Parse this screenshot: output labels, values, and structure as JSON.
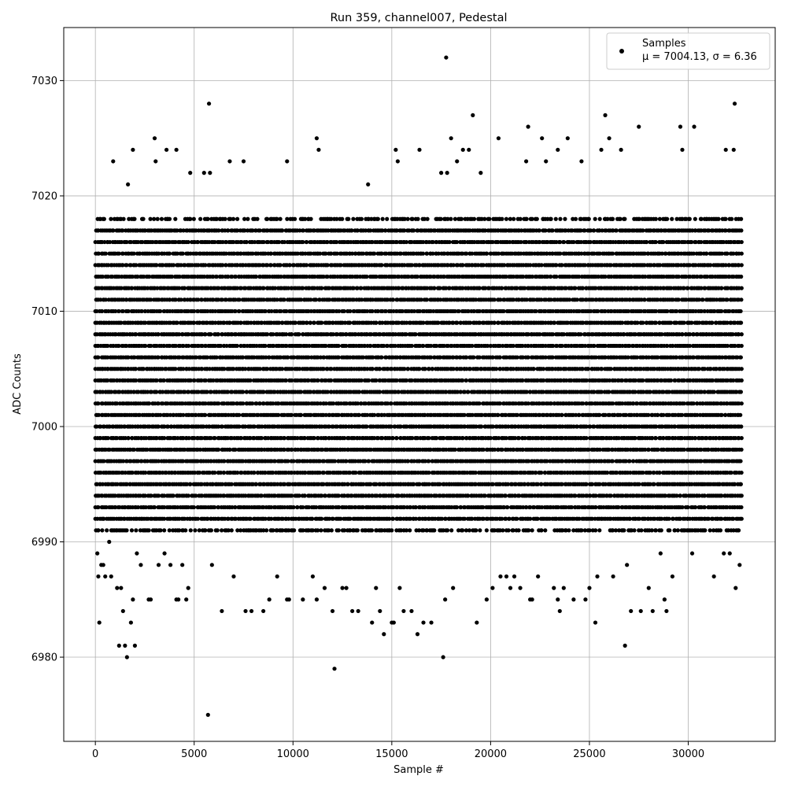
{
  "chart_data": {
    "type": "scatter",
    "title": "Run 359, channel007, Pedestal",
    "xlabel": "Sample #",
    "ylabel": "ADC Counts",
    "xlim": [
      -1600,
      34400
    ],
    "ylim": [
      6972.7,
      7034.6
    ],
    "xticks": [
      0,
      5000,
      10000,
      15000,
      20000,
      25000,
      30000
    ],
    "yticks": [
      6980,
      6990,
      7000,
      7010,
      7020,
      7030
    ],
    "grid": true,
    "legend": {
      "location": "upper right",
      "entries": [
        {
          "label": "Samples",
          "stats": "μ = 7004.13, σ = 6.36",
          "marker": "filled-circle",
          "color": "#000000"
        }
      ]
    },
    "series": [
      {
        "name": "Samples",
        "color": "#000000",
        "dense_band": {
          "x_range": [
            0,
            32700
          ],
          "y_levels": [
            6991,
            6992,
            6993,
            6994,
            6995,
            6996,
            6997,
            6998,
            6999,
            7000,
            7001,
            7002,
            7003,
            7004,
            7005,
            7006,
            7007,
            7008,
            7009,
            7010,
            7011,
            7012,
            7013,
            7014,
            7015,
            7016,
            7017,
            7018
          ]
        },
        "points": [
          [
            100,
            6989
          ],
          [
            150,
            6987
          ],
          [
            200,
            6983
          ],
          [
            300,
            6988
          ],
          [
            400,
            6988
          ],
          [
            500,
            6987
          ],
          [
            700,
            6990
          ],
          [
            800,
            6987
          ],
          [
            900,
            7023
          ],
          [
            1100,
            6986
          ],
          [
            1200,
            6981
          ],
          [
            1300,
            6986
          ],
          [
            1400,
            6984
          ],
          [
            1500,
            6981
          ],
          [
            1600,
            6980
          ],
          [
            1650,
            7021
          ],
          [
            1800,
            6983
          ],
          [
            1900,
            6985
          ],
          [
            2000,
            6981
          ],
          [
            1900,
            7024
          ],
          [
            2100,
            6989
          ],
          [
            2300,
            6988
          ],
          [
            2700,
            6985
          ],
          [
            2800,
            6985
          ],
          [
            3000,
            7025
          ],
          [
            3050,
            7023
          ],
          [
            3200,
            6988
          ],
          [
            3500,
            6989
          ],
          [
            3600,
            7024
          ],
          [
            3800,
            6988
          ],
          [
            4100,
            7024
          ],
          [
            4100,
            6985
          ],
          [
            4200,
            6985
          ],
          [
            4400,
            6988
          ],
          [
            4600,
            6985
          ],
          [
            4700,
            6986
          ],
          [
            4800,
            7022
          ],
          [
            5500,
            7022
          ],
          [
            5700,
            6975
          ],
          [
            5750,
            7028
          ],
          [
            5800,
            7022
          ],
          [
            5900,
            6988
          ],
          [
            6400,
            6984
          ],
          [
            6800,
            7023
          ],
          [
            7000,
            6987
          ],
          [
            7500,
            7023
          ],
          [
            7600,
            6984
          ],
          [
            7900,
            6984
          ],
          [
            8500,
            6984
          ],
          [
            8800,
            6985
          ],
          [
            9200,
            6987
          ],
          [
            9700,
            6985
          ],
          [
            9800,
            6985
          ],
          [
            9700,
            7023
          ],
          [
            10500,
            6985
          ],
          [
            11000,
            6987
          ],
          [
            11200,
            6985
          ],
          [
            11200,
            7025
          ],
          [
            11300,
            7024
          ],
          [
            11600,
            6986
          ],
          [
            12000,
            6984
          ],
          [
            12100,
            6979
          ],
          [
            12500,
            6986
          ],
          [
            12700,
            6986
          ],
          [
            13000,
            6984
          ],
          [
            13300,
            6984
          ],
          [
            13800,
            7021
          ],
          [
            14000,
            6983
          ],
          [
            14200,
            6986
          ],
          [
            14400,
            6984
          ],
          [
            14600,
            6982
          ],
          [
            15000,
            6983
          ],
          [
            15100,
            6983
          ],
          [
            15200,
            7024
          ],
          [
            15300,
            7023
          ],
          [
            15400,
            6986
          ],
          [
            15600,
            6984
          ],
          [
            16000,
            6984
          ],
          [
            16300,
            6982
          ],
          [
            16400,
            7024
          ],
          [
            16600,
            6983
          ],
          [
            17000,
            6983
          ],
          [
            17500,
            7022
          ],
          [
            17600,
            6980
          ],
          [
            17700,
            6985
          ],
          [
            17750,
            7032
          ],
          [
            17800,
            7022
          ],
          [
            18000,
            7025
          ],
          [
            18100,
            6986
          ],
          [
            18300,
            7023
          ],
          [
            18600,
            7024
          ],
          [
            18900,
            7024
          ],
          [
            19100,
            7027
          ],
          [
            19300,
            6983
          ],
          [
            19500,
            7022
          ],
          [
            19800,
            6985
          ],
          [
            20100,
            6986
          ],
          [
            20400,
            7025
          ],
          [
            20500,
            6987
          ],
          [
            20800,
            6987
          ],
          [
            21000,
            6986
          ],
          [
            21200,
            6987
          ],
          [
            21500,
            6986
          ],
          [
            21800,
            7023
          ],
          [
            21900,
            7026
          ],
          [
            22000,
            6985
          ],
          [
            22100,
            6985
          ],
          [
            22400,
            6987
          ],
          [
            22600,
            7025
          ],
          [
            22800,
            7023
          ],
          [
            23200,
            6986
          ],
          [
            23400,
            6985
          ],
          [
            23400,
            7024
          ],
          [
            23500,
            6984
          ],
          [
            23700,
            6986
          ],
          [
            23900,
            7025
          ],
          [
            24200,
            6985
          ],
          [
            24600,
            7023
          ],
          [
            24800,
            6985
          ],
          [
            25000,
            6986
          ],
          [
            25300,
            6983
          ],
          [
            25400,
            6987
          ],
          [
            25600,
            7024
          ],
          [
            25800,
            7027
          ],
          [
            26000,
            7025
          ],
          [
            26200,
            6987
          ],
          [
            26600,
            7024
          ],
          [
            26800,
            6981
          ],
          [
            26900,
            6988
          ],
          [
            27100,
            6984
          ],
          [
            27500,
            7026
          ],
          [
            27600,
            6984
          ],
          [
            28000,
            6986
          ],
          [
            28200,
            6984
          ],
          [
            28600,
            6989
          ],
          [
            28800,
            6985
          ],
          [
            28900,
            6984
          ],
          [
            29200,
            6987
          ],
          [
            29600,
            7026
          ],
          [
            29700,
            7024
          ],
          [
            30200,
            6989
          ],
          [
            30300,
            7026
          ],
          [
            31300,
            6987
          ],
          [
            31800,
            6989
          ],
          [
            31900,
            7024
          ],
          [
            32100,
            6989
          ],
          [
            32300,
            7024
          ],
          [
            32350,
            7028
          ],
          [
            32400,
            6986
          ],
          [
            32600,
            6988
          ]
        ]
      }
    ]
  }
}
